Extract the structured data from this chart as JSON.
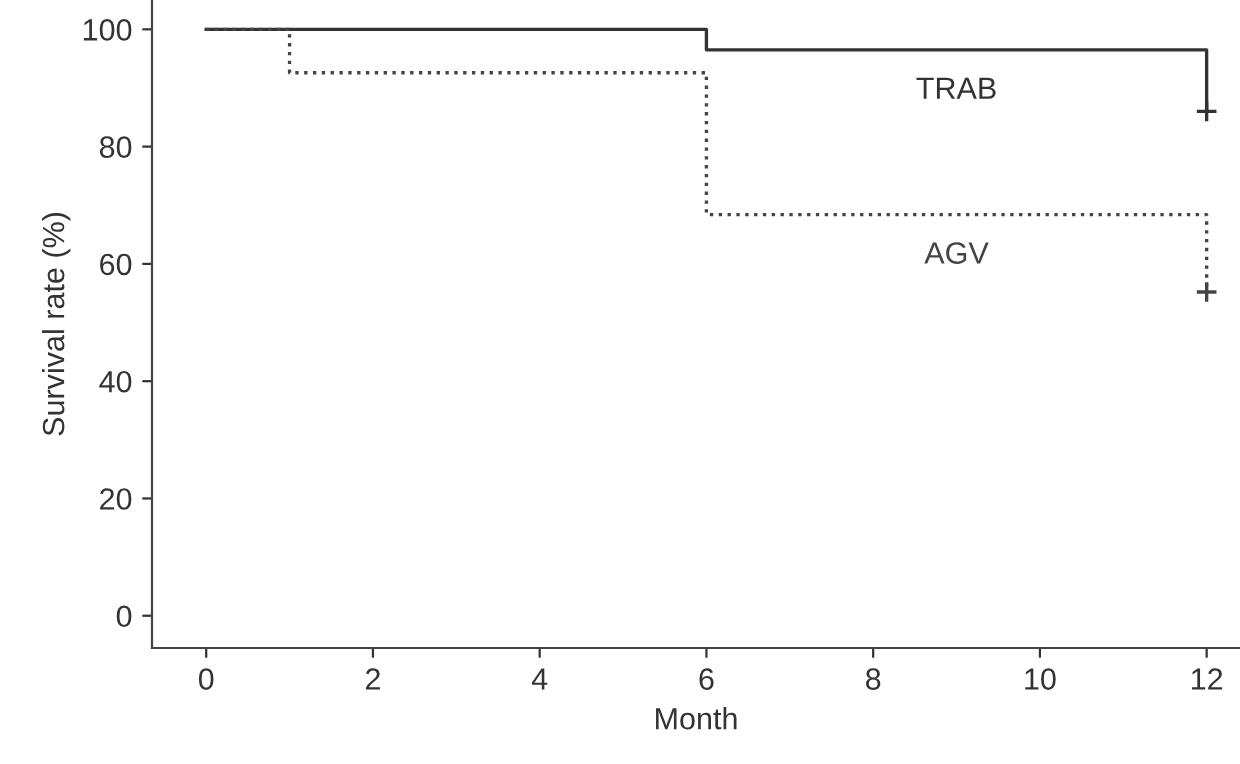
{
  "chart_data": {
    "type": "step",
    "xlabel": "Month",
    "ylabel": "Survival rate (%)",
    "xlim": [
      -0.65,
      12.4
    ],
    "ylim": [
      -5.5,
      105
    ],
    "xticks": [
      0,
      2,
      4,
      6,
      8,
      10,
      12
    ],
    "yticks": [
      0,
      20,
      40,
      60,
      80,
      100
    ],
    "grid": false,
    "legend": false,
    "series": [
      {
        "name": "TRAB",
        "color": "#333333",
        "line_style": "solid",
        "marker": "none",
        "x": [
          0,
          6,
          12,
          12
        ],
        "values": [
          100,
          96.5,
          96.5,
          86
        ]
      },
      {
        "name": "AGV",
        "color": "#444444",
        "line_style": "dotted",
        "marker": "none",
        "x": [
          0,
          1,
          6,
          12,
          12
        ],
        "values": [
          100,
          92.6,
          68.4,
          68.4,
          55.2
        ]
      },
      {
        "type": "scatter",
        "color": "#333333",
        "marker": "cross",
        "x": [
          12
        ],
        "values": [
          86
        ]
      },
      {
        "type": "scatter",
        "color": "#444444",
        "marker": "cross",
        "x": [
          12
        ],
        "values": [
          55.2
        ]
      }
    ]
  }
}
